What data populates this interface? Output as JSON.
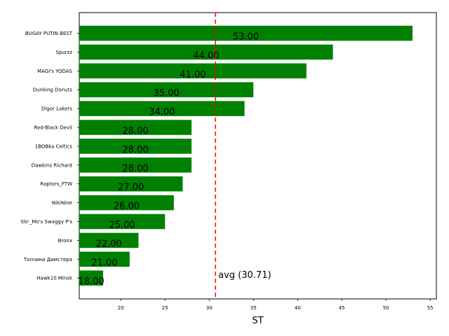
{
  "chart_data": {
    "type": "bar",
    "orientation": "horizontal",
    "categories": [
      "BUGAY PUTIN BEST",
      "Spurzz",
      "MAGI's YODAS",
      "Dunking Donuts",
      "Digor Lakers",
      "Red-Black Devil",
      "1BOBka Celtics",
      "Dawkins Richard",
      "Raptors_FTW",
      "NikiNine",
      "Slo'_Mo's Swaggy P's",
      "Bronx",
      "Топчики Димстера",
      "Hawk10 Minsk"
    ],
    "values": [
      53,
      44,
      41,
      35,
      34,
      28,
      28,
      28,
      27,
      26,
      25,
      22,
      21,
      18
    ],
    "data_labels": [
      "53.00",
      "44.00",
      "41.00",
      "35.00",
      "34.00",
      "28.00",
      "28.00",
      "28.00",
      "27.00",
      "26.00",
      "25.00",
      "22.00",
      "21.00",
      "18.00"
    ],
    "title": "",
    "xlabel": "ST",
    "ylabel": "",
    "xlim": [
      15.3,
      55.7
    ],
    "xticks": [
      20,
      25,
      30,
      35,
      40,
      45,
      50,
      55
    ],
    "grid": false,
    "bar_color": "#008000",
    "average": {
      "value": 30.71,
      "label": "avg (30.71)",
      "color": "#ff0000",
      "style": "dashed"
    }
  }
}
